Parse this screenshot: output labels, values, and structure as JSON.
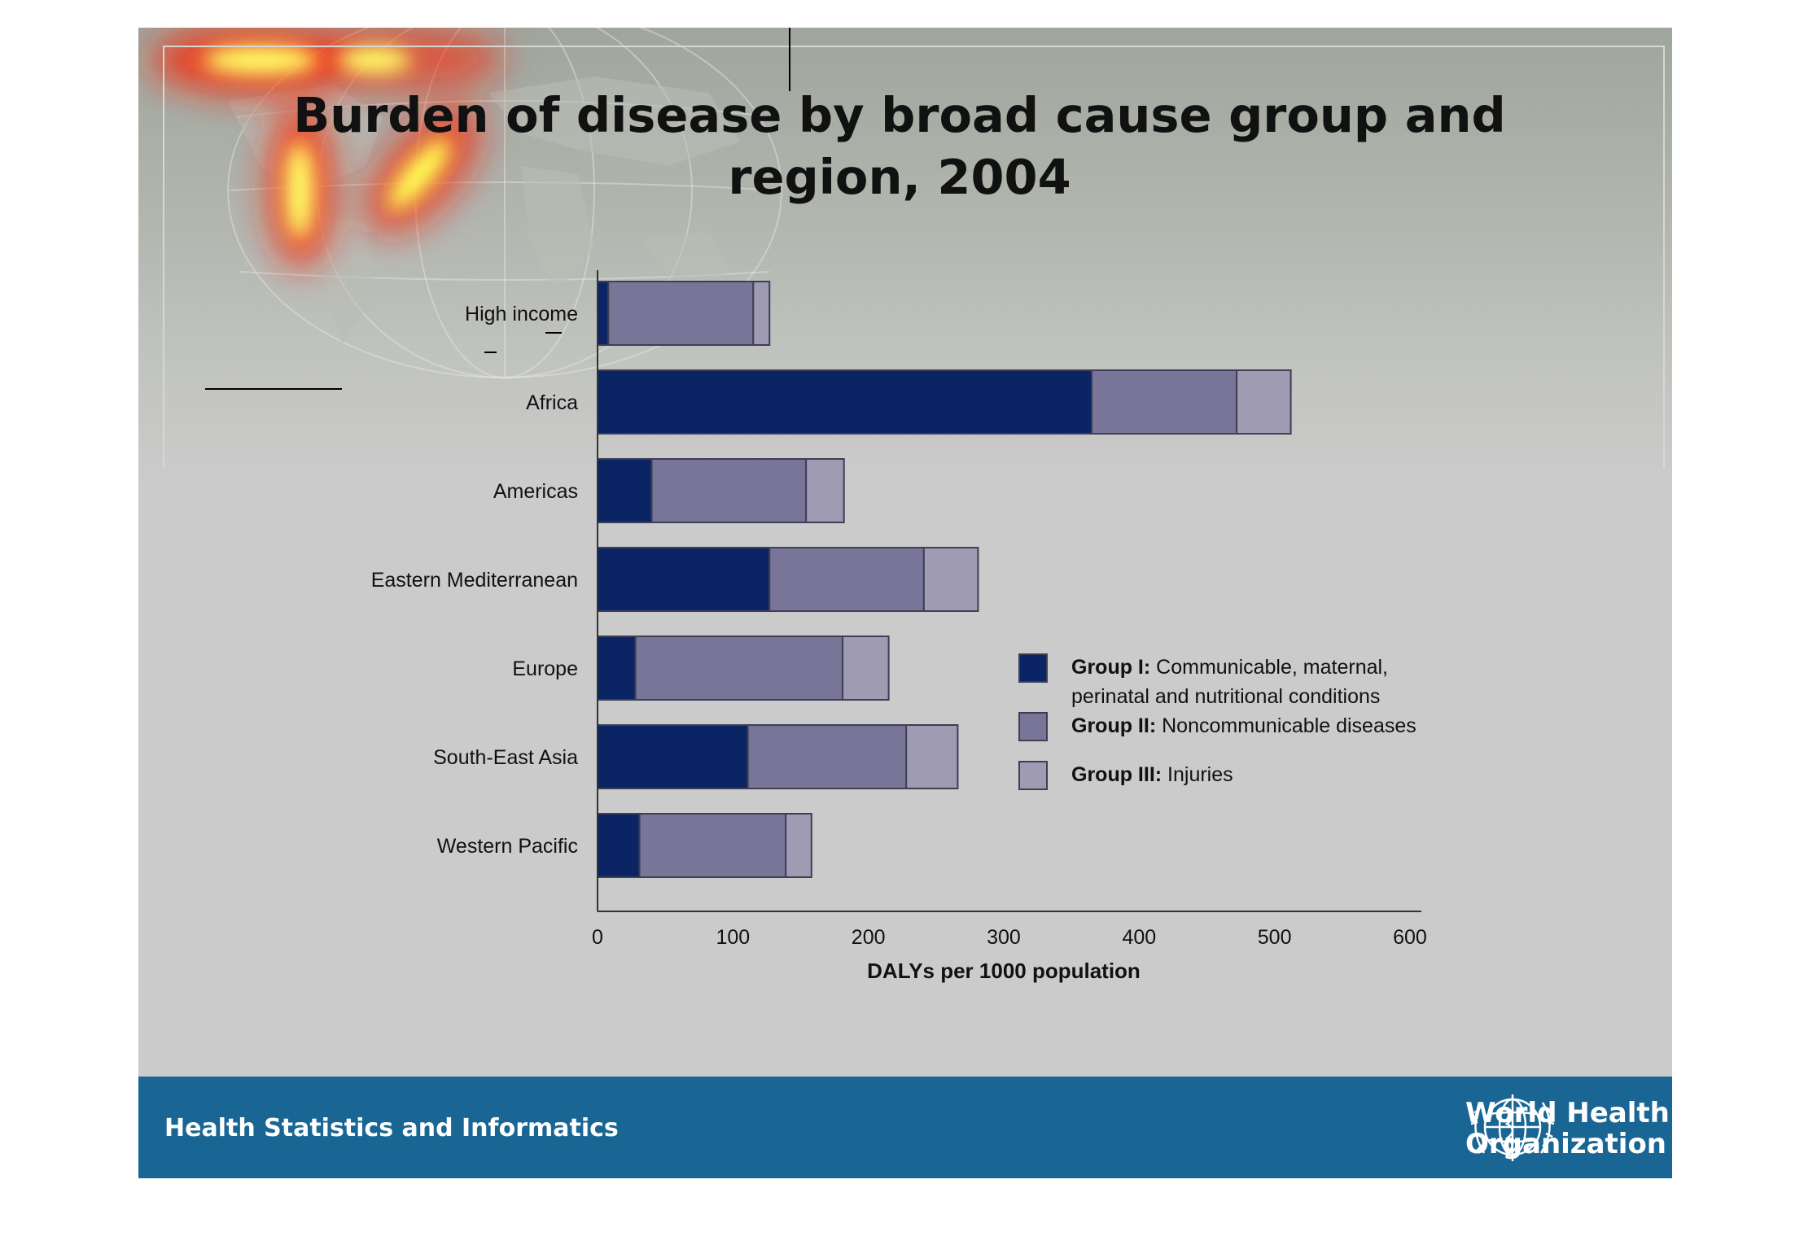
{
  "slide": {
    "title_line1": "Burden of disease by broad cause group and",
    "title_line2": "region, 2004",
    "footer_text": "Health Statistics and Informatics",
    "organization_line1": "World Health",
    "organization_line2": "Organization",
    "footer_color": "#196694"
  },
  "chart_data": {
    "type": "bar",
    "orientation": "horizontal",
    "stacked": true,
    "title": "",
    "xlabel": "DALYs per 1000 population",
    "ylabel": "",
    "xlim": [
      0,
      600
    ],
    "xticks": [
      0,
      100,
      200,
      300,
      400,
      500,
      600
    ],
    "grid": false,
    "legend_position": "right",
    "categories": [
      "High income",
      "Africa",
      "Americas",
      "Eastern Mediterranean",
      "Europe",
      "South-East Asia",
      "Western Pacific"
    ],
    "series": [
      {
        "bold": "Group I:",
        "label": "Communicable, maternal, perinatal and nutritional conditions",
        "label_line1": "Communicable, maternal,",
        "label_line2": "perinatal and nutritional conditions",
        "color": "#0b2463",
        "values": [
          8,
          365,
          40,
          127,
          28,
          111,
          31
        ]
      },
      {
        "bold": "Group II:",
        "label": "Noncommunicable diseases",
        "label_line1": "Noncommunicable diseases",
        "color": "#787599",
        "values": [
          107,
          107,
          114,
          114,
          153,
          117,
          108
        ]
      },
      {
        "bold": "Group III:",
        "label": "Injuries",
        "label_line1": "Injuries",
        "color": "#9e9bb3",
        "values": [
          12,
          40,
          28,
          40,
          34,
          38,
          19
        ]
      }
    ]
  }
}
